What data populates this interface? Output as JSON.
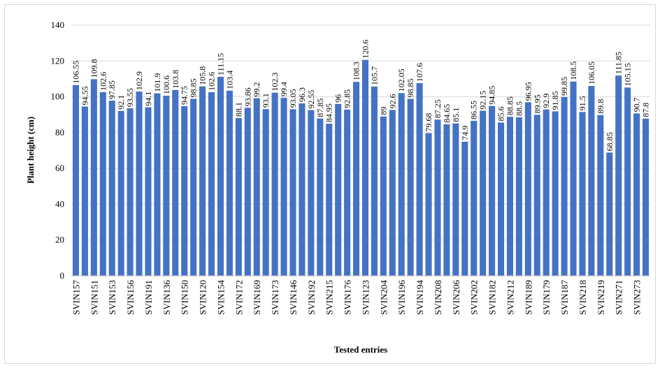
{
  "chart_data": {
    "type": "bar",
    "y_label": "Plant height (cm)",
    "x_label": "Tested entries",
    "categories": [
      "SVIN157",
      null,
      "SVIN151",
      null,
      "SVIN153",
      null,
      "SVIN156",
      null,
      "SVIN191",
      null,
      "SVIN136",
      null,
      "SVIN150",
      null,
      "SVIN120",
      null,
      "SVIN154",
      null,
      "SVIN172",
      null,
      "SVIN169",
      null,
      "SVIN173",
      null,
      "SVIN146",
      null,
      "SVIN192",
      null,
      "SVIN215",
      null,
      "SVIN176",
      null,
      "SVIN123",
      null,
      "SVIN204",
      null,
      "SVIN196",
      null,
      "SVIN194",
      null,
      "SVIN208",
      null,
      "SVIN206",
      null,
      "SVIN202",
      null,
      "SVIN182",
      null,
      "SVIN212",
      null,
      "SVIN189",
      null,
      "SVIN179",
      null,
      "SVIN187",
      null,
      "SVIN218",
      null,
      "SVIN219",
      null,
      "SVIN271",
      null,
      "SVIN273",
      null
    ],
    "values": [
      106.55,
      94.55,
      109.8,
      102.6,
      97.85,
      92.1,
      93.55,
      102.9,
      94.1,
      101.9,
      100.6,
      103.8,
      94.75,
      98.85,
      105.8,
      102.6,
      111.15,
      103.4,
      88.1,
      93.86,
      99.2,
      93.1,
      102.3,
      99.4,
      93.05,
      96.3,
      92.55,
      87.85,
      84.95,
      96,
      92.85,
      108.3,
      120.6,
      105.7,
      89,
      92.6,
      102.05,
      98.85,
      107.6,
      79.68,
      87.25,
      84.65,
      85.1,
      74.9,
      86.55,
      92.15,
      94.85,
      85.6,
      88.85,
      88.5,
      96.95,
      89.95,
      92.9,
      91.85,
      99.85,
      108.5,
      91.5,
      106.05,
      89.8,
      68.85,
      111.85,
      105.15,
      90.7,
      87.8
    ],
    "color": "#4472c4",
    "ylim": [
      0,
      140
    ],
    "yticks": [
      0,
      20,
      40,
      60,
      80,
      100,
      120,
      140
    ],
    "grid": true
  }
}
